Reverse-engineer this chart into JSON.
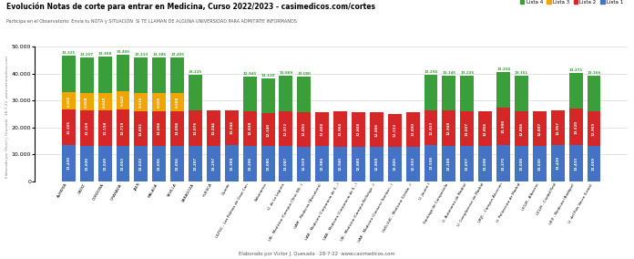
{
  "title": "Evolución Notas de corte para entrar en Medicina, Curso 2022/2023 - casimedicos.com/cortes",
  "subtitle": "Participa en el Observatorio: Envía tu NOTA y SITUACIÓN  SI TE LLAMAN DE ALGUNA UNIVERSIDAD PARA ADMITIRTE INFORMANOS",
  "footer": "Elaborado por Víctor J. Quesada · 28-7-22  www.casimedicos.com",
  "ylabel_rotated": "Elaborado por Víctor J. Quesada · 28-7-22  www.casimedicos.com",
  "legend_labels": [
    "Lista 4",
    "Lista 3",
    "Lista 2",
    "Lista 1"
  ],
  "colors_lista4": "#3a9e3a",
  "colors_lista3": "#f0a500",
  "colors_lista2": "#d62728",
  "colors_lista1": "#4472c4",
  "categories": [
    "ALMERIA",
    "CADIZ",
    "CORDOBA",
    "GRANADA",
    "JAEN",
    "MALAGA",
    "SEVILLA",
    "ZARAGOZA",
    "HUESCA",
    "Oviedo",
    "ULPGC - Las Palmas de Gran Can.",
    "Salamanca",
    "U. de La Laguna",
    "UB - Medicina (Campus Clínic EB...)",
    "UAM - Medicina (Barcelona)",
    "UAB - Medicina (Corporació de S...)",
    "UAB - Medicina (Corporació de S...)",
    "UB - Medicina (Campus Bellvitge...)",
    "UAB - Medicina (Consorci Sanitari...)",
    "UdG-UdC - Medicina (Lleida...)",
    "U. Jaume I",
    "Santiago de Compostela",
    "U. Autónoma de Madrid",
    "U. Complutense de Madrid",
    "URJC - Campus Alcorcón",
    "U. Politécnica de Madrid",
    "UCLM - Albacete",
    "UCLM - Ciudad Real",
    "UEX - Medicina (Badajoz)",
    "U. del País Vasco (Leioa)"
  ],
  "lista1": [
    13430,
    13030,
    13049,
    13053,
    13032,
    13056,
    13056,
    13207,
    13297,
    13388,
    13206,
    13080,
    13087,
    12929,
    12980,
    12940,
    12880,
    12808,
    12805,
    12932,
    13508,
    13248,
    13057,
    13008,
    13375,
    13008,
    13045,
    13430,
    13433,
    13059
  ],
  "lista2": [
    13205,
    13169,
    13198,
    13719,
    13031,
    13058,
    13058,
    13076,
    13044,
    13044,
    12838,
    12140,
    12972,
    12850,
    12808,
    12964,
    12808,
    12806,
    12332,
    12890,
    12833,
    12948,
    13027,
    12856,
    13990,
    12856,
    12897,
    12957,
    13520,
    12959
  ],
  "lista3": [
    6606,
    6608,
    6649,
    6649,
    6616,
    6605,
    6508,
    0,
    0,
    0,
    0,
    0,
    0,
    0,
    0,
    0,
    0,
    0,
    0,
    0,
    0,
    0,
    0,
    0,
    0,
    0,
    0,
    0,
    0,
    0
  ],
  "lista4": [
    13325,
    13257,
    13368,
    13450,
    13313,
    13385,
    13495,
    13225,
    0,
    0,
    12943,
    13110,
    13069,
    13000,
    0,
    0,
    0,
    0,
    0,
    0,
    13294,
    13145,
    13225,
    0,
    13254,
    13351,
    0,
    0,
    13271,
    13166
  ],
  "ylim_max": 50000,
  "ytick_vals": [
    0,
    10000,
    20000,
    30000,
    40000,
    50000
  ],
  "ytick_labels": [
    "0",
    "10.000",
    "20.000",
    "30.000",
    "40.000",
    "50.000"
  ]
}
